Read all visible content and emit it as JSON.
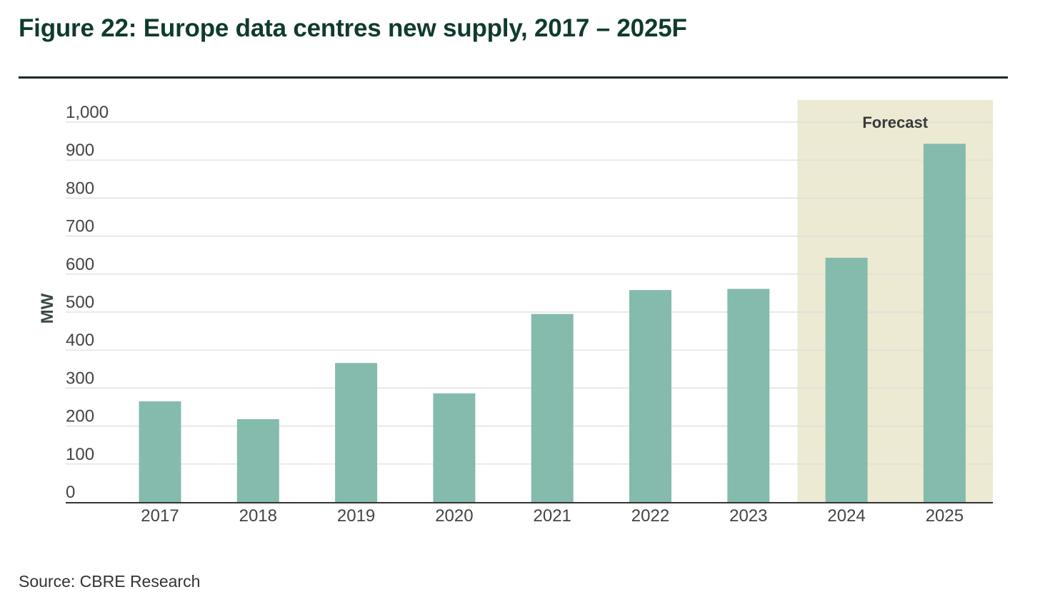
{
  "title": "Figure 22: Europe data centres new supply, 2017 – 2025F",
  "source": "Source: CBRE Research",
  "colors": {
    "bar": "#84bbad",
    "forecast_band": "#ecead2",
    "grid": "#dcdcdc",
    "axis": "#333333",
    "title": "#0f3b2e",
    "tick_text": "#444444"
  },
  "chart_data": {
    "type": "bar",
    "title": "Figure 22: Europe data centres new supply, 2017 – 2025F",
    "xlabel": "",
    "ylabel": "MW",
    "categories": [
      "2017",
      "2018",
      "2019",
      "2020",
      "2021",
      "2022",
      "2023",
      "2024",
      "2025"
    ],
    "values": [
      265,
      218,
      366,
      286,
      495,
      558,
      561,
      643,
      943
    ],
    "ylim": [
      0,
      1000
    ],
    "yticks": [
      0,
      100,
      200,
      300,
      400,
      500,
      600,
      700,
      800,
      900,
      1000
    ],
    "ytick_labels": [
      "0",
      "100",
      "200",
      "300",
      "400",
      "500",
      "600",
      "700",
      "800",
      "900",
      "1,000"
    ],
    "grid": true,
    "forecast": {
      "label": "Forecast",
      "categories": [
        "2024",
        "2025"
      ]
    }
  }
}
